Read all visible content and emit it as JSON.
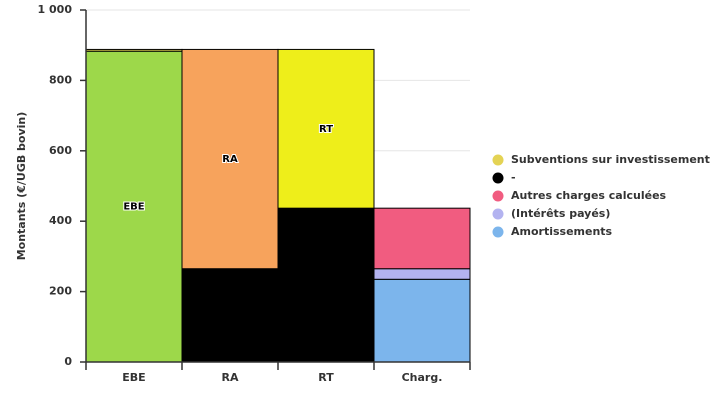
{
  "chart_data": {
    "type": "stacked_bar",
    "y_axis_label": "Montants (€/UGB bovin)",
    "categories": [
      "EBE",
      "RA",
      "RT",
      "Charg."
    ],
    "ylim": [
      0,
      1000
    ],
    "yticks": [
      0,
      200,
      400,
      600,
      800,
      {
        "value": 1000,
        "label": "1 000"
      }
    ],
    "grid": true,
    "legend": "right",
    "series": [
      {
        "name": "Amortissements",
        "color": "#7cb5ec",
        "values": [
          0,
          0,
          0,
          235
        ],
        "show_in_legend": true
      },
      {
        "name": "(Intérêts payés)",
        "color": "#b3b3f0",
        "values": [
          0,
          0,
          0,
          30
        ],
        "show_in_legend": true
      },
      {
        "name": "Autres charges calculées",
        "color": "#f15c80",
        "values": [
          0,
          0,
          0,
          172
        ],
        "show_in_legend": true
      },
      {
        "name": "-",
        "color": "#000000",
        "values": [
          0,
          265,
          437,
          0
        ],
        "show_in_legend": true
      },
      {
        "name": "EBE",
        "color": "#9dd84a",
        "values": [
          883,
          0,
          0,
          0
        ],
        "show_in_legend": false
      },
      {
        "name": "RA",
        "color": "#f7a35c",
        "values": [
          0,
          623,
          0,
          0
        ],
        "show_in_legend": false
      },
      {
        "name": "RT",
        "color": "#eeee1a",
        "values": [
          0,
          0,
          451,
          0
        ],
        "show_in_legend": false
      },
      {
        "name": "Subventions sur investissement",
        "color": "#e4d354",
        "values": [
          5,
          0,
          0,
          0
        ],
        "show_in_legend": true
      }
    ]
  }
}
